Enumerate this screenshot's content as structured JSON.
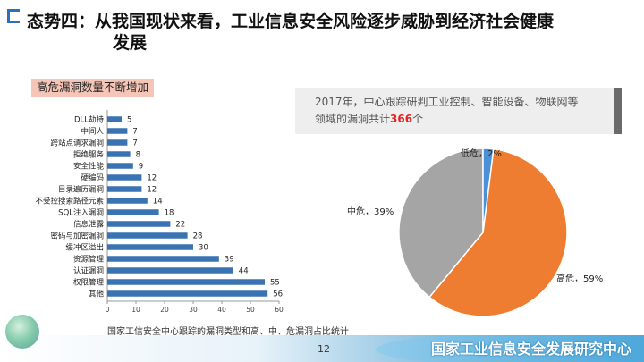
{
  "title": "态势四：从我国现状来看，工业信息安全风险逐步威胁到经济社会健康发展",
  "title_line1": "态势四：从我国现状来看，工业信息安全风险逐步威胁到经济社会健康",
  "title_line2": "发展",
  "section_label": "高危漏洞数量不断增加",
  "info": {
    "line1": "2017年，中心跟踪研判工业控制、智能设备、物联网等",
    "line2_prefix": "领域的漏洞共计",
    "count": "366",
    "line2_suffix": "个"
  },
  "caption": "国家工信安全中心跟踪的漏洞类型和高、中、危漏洞占比统计",
  "page_number": "12",
  "organization": "国家工业信息安全发展研究中心",
  "colors": {
    "bar": "#3a73b3",
    "pie_high": "#ef7d31",
    "pie_medium": "#a5a5a5",
    "pie_low": "#4a90d9",
    "accent": "#2f6fb6",
    "highlight": "#e02424"
  },
  "chart_data": [
    {
      "type": "bar",
      "orientation": "horizontal",
      "categories": [
        "DLL劫持",
        "中间人",
        "跨站点请求漏洞",
        "拒绝服务",
        "安全性能",
        "硬编码",
        "目录遍历漏洞",
        "不受控搜索路径元素",
        "SQL注入漏洞",
        "信息泄露",
        "密码与加密漏洞",
        "缓冲区溢出",
        "资源管理",
        "认证漏洞",
        "权限管理",
        "其他"
      ],
      "values": [
        5,
        7,
        7,
        8,
        9,
        12,
        12,
        14,
        18,
        22,
        28,
        30,
        39,
        44,
        55,
        56
      ],
      "xlim": [
        0,
        60
      ],
      "xticks": [
        0,
        10,
        20,
        30,
        40,
        50,
        60
      ],
      "data_labels": true,
      "grid": false
    },
    {
      "type": "pie",
      "labels": [
        "高危",
        "中危",
        "低危"
      ],
      "values": [
        59,
        39,
        2
      ],
      "value_labels": [
        "高危，59%",
        "中危，39%",
        "低危，2%"
      ]
    }
  ]
}
